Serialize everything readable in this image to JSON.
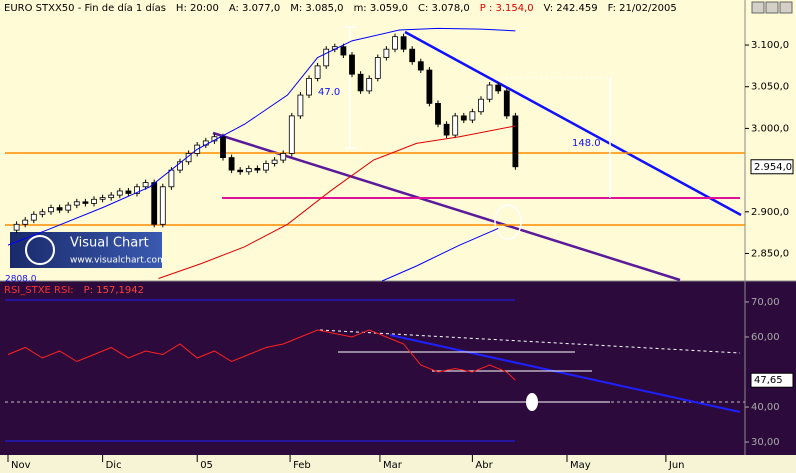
{
  "chart_data": [
    {
      "type": "candlestick",
      "header": [
        "EURO STXX50 - Fin de día 1 días",
        "H: 20:00",
        "A: 3.077,0",
        "M: 3.085,0",
        "m: 3.059,0",
        "C: 3.078,0",
        "P : 3.154,0",
        "V: 242.459",
        "F: 21/02/2005"
      ],
      "x": [
        0,
        2,
        4,
        6,
        8,
        10,
        12,
        14,
        16,
        18,
        20,
        22,
        24,
        26,
        28,
        30,
        32,
        34,
        36,
        38,
        40,
        42,
        44,
        46,
        48,
        50,
        52,
        54,
        56,
        58,
        60,
        62,
        64,
        66,
        68,
        70,
        72,
        74,
        76,
        78,
        80,
        82,
        84,
        86,
        88,
        90,
        92,
        94,
        96,
        98,
        100,
        102,
        104,
        106,
        108,
        110,
        112,
        114,
        116,
        118
      ],
      "close": [
        2878,
        2885,
        2890,
        2897,
        2900,
        2905,
        2902,
        2908,
        2912,
        2910,
        2915,
        2917,
        2920,
        2925,
        2922,
        2930,
        2935,
        2885,
        2930,
        2950,
        2960,
        2970,
        2980,
        2985,
        2990,
        2965,
        2950,
        2948,
        2952,
        2950,
        2958,
        2962,
        2970,
        3015,
        3040,
        3060,
        3075,
        3095,
        3098,
        3088,
        3065,
        3045,
        3060,
        3085,
        3095,
        3110,
        3095,
        3080,
        3070,
        3030,
        3005,
        2992,
        3015,
        3010,
        3020,
        3035,
        3052,
        3045,
        3015,
        2954
      ],
      "color_up": "#ffffff",
      "color_down": "#000000",
      "overlays": [
        {
          "color": "#0000ff",
          "x": [
            0,
            10,
            22,
            33,
            44,
            55,
            65,
            72,
            80,
            91,
            100,
            110,
            118
          ],
          "values": [
            2860,
            2880,
            2905,
            2930,
            2975,
            3005,
            3040,
            3085,
            3105,
            3118,
            3120,
            3119,
            3117
          ]
        },
        {
          "color": "#e00000",
          "x": [
            35,
            45,
            55,
            65,
            75,
            85,
            95,
            105,
            118
          ],
          "values": [
            2820,
            2838,
            2858,
            2885,
            2925,
            2962,
            2982,
            2990,
            3003
          ]
        },
        {
          "color": "#0000ff",
          "x": [
            87,
            95,
            105,
            114
          ],
          "values": [
            2817,
            2835,
            2860,
            2880
          ]
        }
      ],
      "last": {
        "value": 2954,
        "label": "2.954,0"
      },
      "annotations": [
        "47.0",
        "148.0",
        "2808,0"
      ],
      "watermark": [
        "Visual Chart",
        "www.visualchart.com"
      ],
      "xlim": [
        -0.7,
        171.4
      ],
      "ylim": [
        2817,
        3154
      ],
      "yticks": [
        {
          "value": 2850,
          "label": "2.850,0"
        },
        {
          "value": 2900,
          "label": "2.900,0"
        },
        {
          "value": 3000,
          "label": "3.000,0"
        },
        {
          "value": 3050,
          "label": "3.050,0"
        },
        {
          "value": 3100,
          "label": "3.100,0"
        }
      ]
    },
    {
      "type": "line",
      "header": [
        "RSI_STXE RSI:",
        "P: 157,1942"
      ],
      "x": [
        0,
        4,
        8,
        12,
        16,
        20,
        24,
        28,
        32,
        36,
        40,
        44,
        48,
        52,
        56,
        60,
        64,
        68,
        72,
        76,
        80,
        84,
        88,
        92,
        96,
        100,
        104,
        108,
        112,
        116,
        118
      ],
      "values": [
        55,
        57,
        54,
        56,
        53,
        55,
        57,
        54,
        56,
        55,
        58,
        54,
        56,
        53,
        55,
        57,
        58,
        60,
        62,
        61,
        60,
        62,
        60,
        58,
        52,
        50,
        51,
        50,
        52,
        50,
        47.65
      ],
      "color": "#ff2020",
      "last": {
        "value": 47.65,
        "label": "47,65"
      },
      "xlim": [
        -0.7,
        171.4
      ],
      "ylim": [
        26.3,
        75.7
      ],
      "yticks": [
        {
          "value": 30,
          "label": "30,00"
        },
        {
          "value": 40,
          "label": "40,00"
        },
        {
          "value": 60,
          "label": "60,00"
        },
        {
          "value": 70,
          "label": "70,00"
        }
      ],
      "xticks": [
        {
          "value": 0,
          "label": "Nov"
        },
        {
          "value": 22,
          "label": "Dic"
        },
        {
          "value": 44,
          "label": "05"
        },
        {
          "value": 65.6,
          "label": "Feb"
        },
        {
          "value": 86.5,
          "label": "Mar"
        },
        {
          "value": 108,
          "label": "Abr"
        },
        {
          "value": 130,
          "label": "May"
        },
        {
          "value": 153,
          "label": "Jun"
        }
      ]
    }
  ]
}
